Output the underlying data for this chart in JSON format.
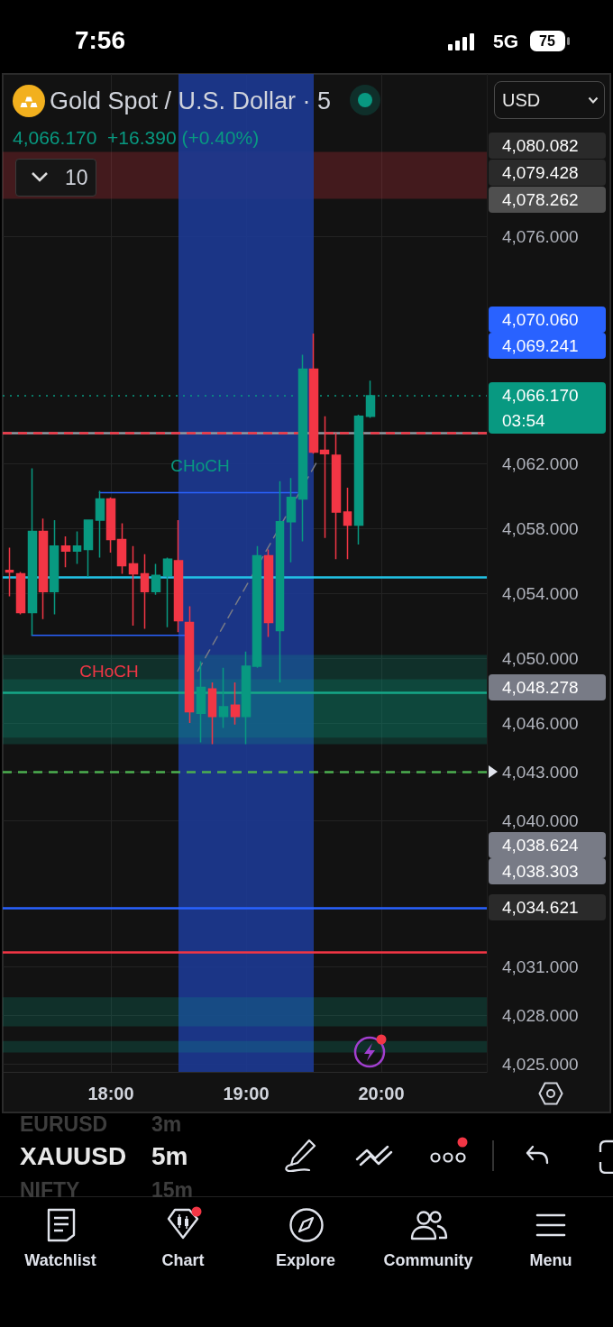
{
  "chart_data": {
    "type": "candlestick",
    "title": "Gold Spot / U.S. Dollar · 5",
    "subtitle": "4,066.170  +16.390 (+0.40%)",
    "x": [
      17.25,
      17.333,
      17.417,
      17.5,
      17.583,
      17.667,
      17.75,
      17.833,
      17.917,
      18,
      18.083,
      18.167,
      18.25,
      18.333,
      18.417,
      18.5,
      18.583,
      18.667,
      18.75,
      18.833,
      18.917,
      19,
      19.083,
      19.167,
      19.25,
      19.333,
      19.417,
      19.5,
      19.583,
      19.667,
      19.75,
      19.833,
      19.917
    ],
    "ohlc": [
      [
        4055.4,
        4056.8,
        4053.8,
        4055.3
      ],
      [
        4055.2,
        4055.3,
        4052.7,
        4052.8
      ],
      [
        4052.8,
        4061.7,
        4051.4,
        4057.8
      ],
      [
        4057.8,
        4058.6,
        4052.4,
        4054.1
      ],
      [
        4054.1,
        4058.5,
        4052.7,
        4056.9
      ],
      [
        4056.9,
        4057.5,
        4055.6,
        4056.6
      ],
      [
        4056.6,
        4057.8,
        4055.8,
        4056.9
      ],
      [
        4056.7,
        4058.5,
        4055.0,
        4058.5
      ],
      [
        4058.5,
        4060.3,
        4056.2,
        4059.8
      ],
      [
        4059.8,
        4059.9,
        4056.5,
        4057.3
      ],
      [
        4057.3,
        4058.3,
        4055.2,
        4055.7
      ],
      [
        4055.8,
        4056.9,
        4052.0,
        4055.2
      ],
      [
        4055.2,
        4056.4,
        4051.8,
        4054.1
      ],
      [
        4054.1,
        4055.8,
        4053.9,
        4055.1
      ],
      [
        4055.1,
        4056.2,
        4051.9,
        4056.1
      ],
      [
        4056.0,
        4058.5,
        4051.6,
        4052.3
      ],
      [
        4052.2,
        4053.2,
        4046.0,
        4046.7
      ],
      [
        4046.6,
        4049.8,
        4044.8,
        4048.2
      ],
      [
        4048.1,
        4048.5,
        4044.7,
        4046.4
      ],
      [
        4046.4,
        4049.4,
        4045.7,
        4047.0
      ],
      [
        4047.1,
        4048.5,
        4045.9,
        4046.4
      ],
      [
        4046.4,
        4050.4,
        4044.7,
        4049.5
      ],
      [
        4049.5,
        4056.9,
        4049.4,
        4056.3
      ],
      [
        4056.3,
        4056.7,
        4051.3,
        4052.2
      ],
      [
        4051.7,
        4060.9,
        4048.5,
        4058.4
      ],
      [
        4058.4,
        4061.1,
        4055.9,
        4059.9
      ],
      [
        4059.8,
        4068.7,
        4057.2,
        4067.8
      ],
      [
        4067.8,
        4070.0,
        4062.6,
        4062.7
      ],
      [
        4062.8,
        4064.9,
        4057.4,
        4062.6
      ],
      [
        4062.5,
        4063.9,
        4056.1,
        4059.0
      ],
      [
        4059.0,
        4060.5,
        4056.1,
        4058.2
      ],
      [
        4058.2,
        4065.0,
        4057.0,
        4064.9
      ],
      [
        4064.9,
        4067.1,
        4064.8,
        4066.17
      ]
    ],
    "colors": [
      "#f23645",
      "#f23645",
      "#089981",
      "#f23645",
      "#089981",
      "#f23645",
      "#089981",
      "#089981",
      "#089981",
      "#f23645",
      "#f23645",
      "#f23645",
      "#f23645",
      "#089981",
      "#089981",
      "#f23645",
      "#f23645",
      "#089981",
      "#f23645",
      "#089981",
      "#f23645",
      "#089981",
      "#089981",
      "#f23645",
      "#089981",
      "#089981",
      "#089981",
      "#f23645",
      "#f23645",
      "#f23645",
      "#f23645",
      "#089981",
      "#089981"
    ],
    "series": [
      {
        "type": "line",
        "x": [
          18.642,
          19.531
        ],
        "values": [
          4049.2,
          4062.2
        ],
        "color": "#787b86",
        "line_style": "dashed"
      },
      {
        "type": "line",
        "x": [
          17.415,
          18.553
        ],
        "values": [
          4051.4,
          4051.4
        ],
        "color": "#2962ff",
        "line_style": "solid"
      },
      {
        "type": "line",
        "x": [
          17.916,
          19.38
        ],
        "values": [
          4060.2,
          4060.2
        ],
        "color": "#2962ff",
        "line_style": "solid"
      }
    ],
    "xlim": [
      17.2,
      20.78
    ],
    "xticks": [
      {
        "value": 18,
        "label": "18:00"
      },
      {
        "value": 19,
        "label": "19:00"
      },
      {
        "value": 20,
        "label": "20:00"
      }
    ],
    "ylim": [
      4024.5,
      4086
    ],
    "yticks": [
      {
        "value": 4076,
        "label": "4,076.000"
      },
      {
        "value": 4062,
        "label": "4,062.000"
      },
      {
        "value": 4058,
        "label": "4,058.000"
      },
      {
        "value": 4054,
        "label": "4,054.000"
      },
      {
        "value": 4050,
        "label": "4,050.000"
      },
      {
        "value": 4046,
        "label": "4,046.000"
      },
      {
        "value": 4043,
        "label": "4,043.000"
      },
      {
        "value": 4040,
        "label": "4,040.000"
      },
      {
        "value": 4031,
        "label": "4,031.000"
      },
      {
        "value": 4028,
        "label": "4,028.000"
      },
      {
        "value": 4025,
        "label": "4,025.000"
      }
    ],
    "grid": true,
    "ref_lines": [
      {
        "axis": "y",
        "value": 4066.17,
        "color": "#089981",
        "line_style": "dotted",
        "label": "4,066.170\n03:54"
      },
      {
        "axis": "y",
        "value": 4063.9,
        "color": "#9598a1",
        "line_style": "solid"
      },
      {
        "axis": "y",
        "value": 4063.9,
        "color": "#f23645",
        "line_style": "dashed"
      },
      {
        "axis": "y",
        "value": 4055,
        "color": "#22c3e6",
        "line_style": "solid"
      },
      {
        "axis": "y",
        "value": 4047.9,
        "color": "#16a889",
        "line_style": "solid"
      },
      {
        "axis": "y",
        "value": 4043,
        "color": "#4caf50",
        "line_style": "dashed"
      },
      {
        "axis": "y",
        "value": 4034.621,
        "color": "#2962ff",
        "line_style": "solid",
        "label": "4,034.621"
      },
      {
        "axis": "y",
        "value": 4031.9,
        "color": "#f23645",
        "line_style": "solid"
      }
    ],
    "bands": [
      {
        "axis": "y",
        "from": 4078.3,
        "to": 4081.2,
        "color": "#f23645"
      },
      {
        "axis": "x",
        "from": 18.5,
        "to": 19.5,
        "color": "#1d3a94"
      },
      {
        "axis": "y",
        "from": 4045.1,
        "to": 4048.7,
        "color": "#089981"
      },
      {
        "axis": "y",
        "from": 4044.7,
        "to": 4050.2,
        "color": "#089981"
      },
      {
        "axis": "y",
        "from": 4027.3,
        "to": 4029.1,
        "color": "#089981"
      },
      {
        "axis": "y",
        "from": 4025.7,
        "to": 4026.4,
        "color": "#089981"
      }
    ],
    "annotations": [
      "7:56",
      "5G",
      "75",
      "USD",
      "10",
      "EURUSD",
      "3m",
      "XAUUSD",
      "5m",
      "NIFTY",
      "15m",
      "Watchlist",
      "Chart",
      "Explore",
      "Community",
      "Menu",
      "CHoCH",
      "CHoCH",
      "4,080.082",
      "4,079.428",
      "4,078.262",
      "4,070.060",
      "4,069.241",
      "4,048.278",
      "4,038.624",
      "4,038.303"
    ]
  }
}
